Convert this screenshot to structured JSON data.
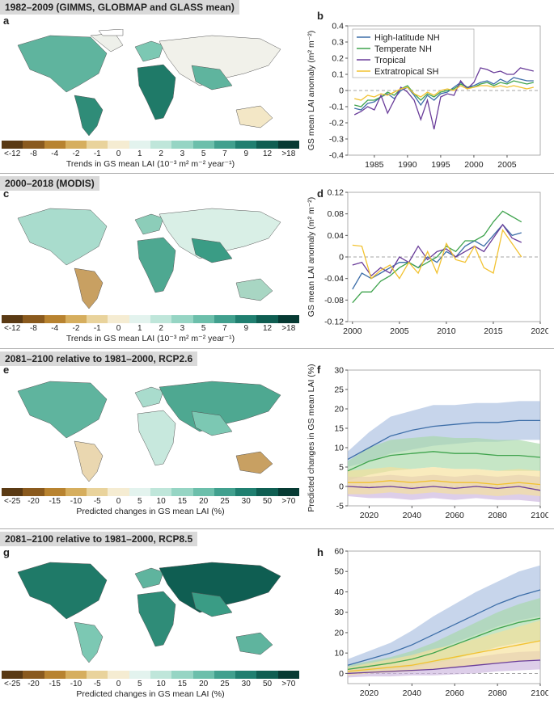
{
  "sections": [
    {
      "letter_map": "a",
      "letter_chart": "b",
      "title": "1982–2009 (GIMMS, GLOBMAP and GLASS mean)"
    },
    {
      "letter_map": "c",
      "letter_chart": "d",
      "title": "2000–2018 (MODIS)"
    },
    {
      "letter_map": "e",
      "letter_chart": "f",
      "title": "2081–2100 relative to 1981–2000, RCP2.6"
    },
    {
      "letter_map": "g",
      "letter_chart": "h",
      "title": "2081–2100 relative to 1981–2000, RCP8.5"
    }
  ],
  "colorbars": {
    "trend": {
      "labels": [
        "<-12",
        "-8",
        "-4",
        "-2",
        "-1",
        "0",
        "1",
        "2",
        "3",
        "5",
        "7",
        "9",
        "12",
        ">18"
      ],
      "caption": "Trends in GS mean LAI (10⁻³ m² m⁻² year⁻¹)",
      "colors": [
        "#5a3a14",
        "#8a5a1e",
        "#b88330",
        "#d6ae5e",
        "#e9d39c",
        "#f5ecd2",
        "#e3f3ee",
        "#bfe6da",
        "#96d5c4",
        "#6cbfab",
        "#41a08e",
        "#207f70",
        "#0f5e52",
        "#063a33"
      ]
    },
    "change": {
      "labels": [
        "<-25",
        "-20",
        "-15",
        "-10",
        "-5",
        "0",
        "5",
        "10",
        "15",
        "20",
        "25",
        "30",
        "50",
        ">70"
      ],
      "caption": "Predicted changes in GS mean LAI (%)",
      "colors": [
        "#5a3a14",
        "#8a5a1e",
        "#b88330",
        "#d6ae5e",
        "#e9d39c",
        "#f5ecd2",
        "#e3f3ee",
        "#bfe6da",
        "#96d5c4",
        "#6cbfab",
        "#41a08e",
        "#207f70",
        "#0f5e52",
        "#063a33"
      ]
    }
  },
  "chart_data": [
    {
      "type": "line",
      "panel": "b",
      "ylabel": "GS mean LAI anomaly (m² m⁻²)",
      "xlim": [
        1981,
        2010
      ],
      "ylim": [
        -0.4,
        0.4
      ],
      "xticks": [
        1985,
        1990,
        1995,
        2000,
        2005
      ],
      "yticks": [
        -0.4,
        -0.3,
        -0.2,
        -0.1,
        0,
        0.1,
        0.2,
        0.3,
        0.4
      ],
      "legend": "top-left",
      "series": [
        {
          "name": "High-latitude NH",
          "color": "#3d6ea8",
          "x": [
            1982,
            1983,
            1984,
            1985,
            1986,
            1987,
            1988,
            1989,
            1990,
            1991,
            1992,
            1993,
            1994,
            1995,
            1996,
            1997,
            1998,
            1999,
            2000,
            2001,
            2002,
            2003,
            2004,
            2005,
            2006,
            2007,
            2008,
            2009
          ],
          "y": [
            -0.11,
            -0.12,
            -0.08,
            -0.07,
            -0.04,
            -0.02,
            -0.05,
            0.0,
            0.02,
            -0.03,
            -0.09,
            -0.03,
            -0.06,
            -0.02,
            -0.01,
            0.02,
            0.05,
            0.02,
            0.03,
            0.05,
            0.06,
            0.04,
            0.07,
            0.05,
            0.08,
            0.07,
            0.06,
            0.06
          ]
        },
        {
          "name": "Temperate NH",
          "color": "#3fa34d",
          "x": [
            1982,
            1983,
            1984,
            1985,
            1986,
            1987,
            1988,
            1989,
            1990,
            1991,
            1992,
            1993,
            1994,
            1995,
            1996,
            1997,
            1998,
            1999,
            2000,
            2001,
            2002,
            2003,
            2004,
            2005,
            2006,
            2007,
            2008,
            2009
          ],
          "y": [
            -0.09,
            -0.1,
            -0.06,
            -0.06,
            -0.04,
            -0.01,
            -0.03,
            0.01,
            0.03,
            -0.02,
            -0.06,
            -0.02,
            -0.04,
            -0.01,
            0.0,
            0.01,
            0.04,
            0.02,
            0.02,
            0.04,
            0.05,
            0.03,
            0.05,
            0.04,
            0.06,
            0.05,
            0.04,
            0.05
          ]
        },
        {
          "name": "Tropical",
          "color": "#6a3d9a",
          "x": [
            1982,
            1983,
            1984,
            1985,
            1986,
            1987,
            1988,
            1989,
            1990,
            1991,
            1992,
            1993,
            1994,
            1995,
            1996,
            1997,
            1998,
            1999,
            2000,
            2001,
            2002,
            2003,
            2004,
            2005,
            2006,
            2007,
            2008,
            2009
          ],
          "y": [
            -0.15,
            -0.13,
            -0.1,
            -0.12,
            -0.03,
            -0.14,
            -0.06,
            0.02,
            -0.01,
            -0.06,
            -0.18,
            -0.06,
            -0.24,
            -0.04,
            -0.02,
            -0.03,
            0.06,
            0.01,
            0.05,
            0.14,
            0.13,
            0.11,
            0.12,
            0.1,
            0.1,
            0.14,
            0.13,
            0.12
          ]
        },
        {
          "name": "Extratropical SH",
          "color": "#f2c230",
          "x": [
            1982,
            1983,
            1984,
            1985,
            1986,
            1987,
            1988,
            1989,
            1990,
            1991,
            1992,
            1993,
            1994,
            1995,
            1996,
            1997,
            1998,
            1999,
            2000,
            2001,
            2002,
            2003,
            2004,
            2005,
            2006,
            2007,
            2008,
            2009
          ],
          "y": [
            -0.05,
            -0.06,
            -0.03,
            -0.04,
            -0.02,
            -0.03,
            -0.01,
            0.01,
            0.02,
            -0.02,
            -0.04,
            -0.01,
            -0.03,
            0.0,
            0.01,
            0.0,
            0.03,
            0.01,
            0.02,
            0.03,
            0.03,
            0.02,
            0.03,
            0.02,
            0.03,
            0.02,
            0.01,
            0.02
          ]
        }
      ]
    },
    {
      "type": "line",
      "panel": "d",
      "ylabel": "GS mean LAI anomaly (m² m⁻²)",
      "xlim": [
        1999.5,
        2020
      ],
      "ylim": [
        -0.12,
        0.12
      ],
      "xticks": [
        2000,
        2005,
        2010,
        2015,
        2020
      ],
      "yticks": [
        -0.12,
        -0.08,
        -0.04,
        0,
        0.04,
        0.08,
        0.12
      ],
      "series": [
        {
          "name": "High-latitude NH",
          "color": "#3d6ea8",
          "x": [
            2000,
            2001,
            2002,
            2003,
            2004,
            2005,
            2006,
            2007,
            2008,
            2009,
            2010,
            2011,
            2012,
            2013,
            2014,
            2015,
            2016,
            2017,
            2018
          ],
          "y": [
            -0.06,
            -0.03,
            -0.04,
            -0.03,
            -0.02,
            -0.01,
            -0.01,
            -0.02,
            0.0,
            -0.01,
            0.01,
            0.0,
            0.02,
            0.03,
            0.02,
            0.04,
            0.06,
            0.04,
            0.045
          ]
        },
        {
          "name": "Temperate NH",
          "color": "#3fa34d",
          "x": [
            2000,
            2001,
            2002,
            2003,
            2004,
            2005,
            2006,
            2007,
            2008,
            2009,
            2010,
            2011,
            2012,
            2013,
            2014,
            2015,
            2016,
            2017,
            2018
          ],
          "y": [
            -0.085,
            -0.065,
            -0.065,
            -0.045,
            -0.035,
            -0.02,
            -0.01,
            -0.02,
            -0.01,
            0.0,
            0.02,
            0.01,
            0.03,
            0.03,
            0.04,
            0.065,
            0.085,
            0.075,
            0.065
          ]
        },
        {
          "name": "Tropical",
          "color": "#6a3d9a",
          "x": [
            2000,
            2001,
            2002,
            2003,
            2004,
            2005,
            2006,
            2007,
            2008,
            2009,
            2010,
            2011,
            2012,
            2013,
            2014,
            2015,
            2016,
            2017,
            2018
          ],
          "y": [
            -0.015,
            -0.01,
            -0.035,
            -0.02,
            -0.03,
            0.0,
            -0.01,
            0.02,
            -0.005,
            0.01,
            0.015,
            0.0,
            0.01,
            0.02,
            0.01,
            0.035,
            0.06,
            0.035,
            0.027
          ]
        },
        {
          "name": "Extratropical SH",
          "color": "#f2c230",
          "x": [
            2000,
            2001,
            2002,
            2003,
            2004,
            2005,
            2006,
            2007,
            2008,
            2009,
            2010,
            2011,
            2012,
            2013,
            2014,
            2015,
            2016,
            2017,
            2018
          ],
          "y": [
            0.022,
            0.02,
            -0.04,
            -0.025,
            -0.015,
            -0.04,
            -0.01,
            -0.03,
            0.01,
            -0.03,
            0.025,
            -0.005,
            -0.01,
            0.02,
            -0.02,
            -0.03,
            0.05,
            0.025,
            0.0
          ]
        }
      ]
    },
    {
      "type": "area",
      "panel": "f",
      "ylabel": "Predicted changes in GS mean LAI (%)",
      "xlim": [
        2010,
        2100
      ],
      "ylim": [
        -5,
        30
      ],
      "xticks": [
        2020,
        2040,
        2060,
        2080,
        2100
      ],
      "yticks": [
        -5,
        0,
        5,
        10,
        15,
        20,
        25,
        30
      ],
      "series": [
        {
          "name": "High-latitude NH",
          "color": "#3d6ea8",
          "fill": "#a9bfe0",
          "x": [
            2010,
            2020,
            2030,
            2040,
            2050,
            2060,
            2070,
            2080,
            2090,
            2100
          ],
          "y": [
            7,
            10,
            13,
            14.5,
            15.5,
            16,
            16.5,
            16.5,
            17,
            17
          ],
          "lo": [
            5,
            6.5,
            8.5,
            9.5,
            10.5,
            11,
            11.5,
            11.5,
            12,
            12
          ],
          "hi": [
            9,
            14,
            18,
            19.5,
            21,
            21,
            21.5,
            21.5,
            22,
            22
          ]
        },
        {
          "name": "Temperate NH",
          "color": "#3fa34d",
          "fill": "#a8d9a8",
          "x": [
            2010,
            2020,
            2030,
            2040,
            2050,
            2060,
            2070,
            2080,
            2090,
            2100
          ],
          "y": [
            4,
            6.5,
            8,
            8.5,
            9,
            8.5,
            8.5,
            8,
            8,
            7.5
          ],
          "lo": [
            1.5,
            3,
            4,
            4.5,
            5,
            4.5,
            4.5,
            4,
            4,
            4
          ],
          "hi": [
            6.5,
            10,
            12,
            12.5,
            13,
            12.5,
            12.5,
            12,
            12,
            11
          ]
        },
        {
          "name": "Tropical",
          "color": "#6a3d9a",
          "fill": "#cbb4dd",
          "x": [
            2010,
            2020,
            2030,
            2040,
            2050,
            2060,
            2070,
            2080,
            2090,
            2100
          ],
          "y": [
            0,
            -0.3,
            0,
            -0.5,
            0,
            -0.5,
            0,
            -0.5,
            0,
            -1
          ],
          "lo": [
            -2.5,
            -3,
            -3,
            -3.5,
            -3,
            -3.5,
            -3,
            -3.5,
            -3.5,
            -4
          ],
          "hi": [
            2.5,
            2.5,
            3,
            2.5,
            3,
            2.5,
            3,
            2.5,
            3,
            2.5
          ]
        },
        {
          "name": "Extratropical SH",
          "color": "#f2c230",
          "fill": "#f6e09a",
          "x": [
            2010,
            2020,
            2030,
            2040,
            2050,
            2060,
            2070,
            2080,
            2090,
            2100
          ],
          "y": [
            1,
            1,
            1.5,
            1,
            1.5,
            1,
            1,
            0.5,
            1,
            0.5
          ],
          "lo": [
            -2,
            -2,
            -1.5,
            -2,
            -1.5,
            -2,
            -2,
            -2.5,
            -2,
            -2.5
          ],
          "hi": [
            4,
            4.5,
            5,
            4.5,
            5,
            4.5,
            4.5,
            4,
            4.5,
            4
          ]
        }
      ]
    },
    {
      "type": "area",
      "panel": "h",
      "xlim": [
        2010,
        2100
      ],
      "ylim": [
        -5,
        60
      ],
      "xticks": [
        2020,
        2040,
        2060,
        2080,
        2100
      ],
      "yticks": [
        0,
        10,
        20,
        30,
        40,
        50,
        60
      ],
      "series": [
        {
          "name": "High-latitude NH",
          "color": "#3d6ea8",
          "fill": "#a9bfe0",
          "x": [
            2010,
            2020,
            2030,
            2040,
            2050,
            2060,
            2070,
            2080,
            2090,
            2100
          ],
          "y": [
            4,
            7,
            10,
            14,
            19,
            24,
            29,
            34,
            38,
            41
          ],
          "lo": [
            1,
            3,
            5,
            8,
            11,
            15,
            19,
            23,
            26,
            28
          ],
          "hi": [
            7,
            11,
            15,
            21,
            28,
            34,
            40,
            45,
            50,
            53
          ]
        },
        {
          "name": "Temperate NH",
          "color": "#3fa34d",
          "fill": "#a8d9a8",
          "x": [
            2010,
            2020,
            2030,
            2040,
            2050,
            2060,
            2070,
            2080,
            2090,
            2100
          ],
          "y": [
            2,
            3.5,
            5,
            7,
            10,
            14,
            18,
            22,
            25,
            27
          ],
          "lo": [
            0,
            1,
            2,
            3,
            5,
            7,
            10,
            13,
            15,
            16
          ],
          "hi": [
            4,
            6,
            8,
            11,
            15,
            20,
            25,
            30,
            34,
            37
          ]
        },
        {
          "name": "Tropical",
          "color": "#6a3d9a",
          "fill": "#cbb4dd",
          "x": [
            2010,
            2020,
            2030,
            2040,
            2050,
            2060,
            2070,
            2080,
            2090,
            2100
          ],
          "y": [
            0,
            0.5,
            1,
            1.5,
            2,
            3,
            4,
            5,
            6,
            6.5
          ],
          "lo": [
            -2,
            -1.5,
            -1.5,
            -1,
            -1,
            -0.5,
            0,
            1,
            1.5,
            2
          ],
          "hi": [
            2,
            3,
            3.5,
            4.5,
            5.5,
            7,
            8,
            9.5,
            10.5,
            11
          ]
        },
        {
          "name": "Extratropical SH",
          "color": "#f2c230",
          "fill": "#f6e09a",
          "x": [
            2010,
            2020,
            2030,
            2040,
            2050,
            2060,
            2070,
            2080,
            2090,
            2100
          ],
          "y": [
            1,
            2,
            3,
            4,
            6,
            8,
            10,
            12,
            14,
            16
          ],
          "lo": [
            -1,
            0,
            0.5,
            1,
            2,
            3,
            4,
            5,
            6,
            7
          ],
          "hi": [
            3,
            5,
            7,
            9,
            12,
            14,
            17,
            20,
            23,
            26
          ]
        }
      ]
    }
  ]
}
